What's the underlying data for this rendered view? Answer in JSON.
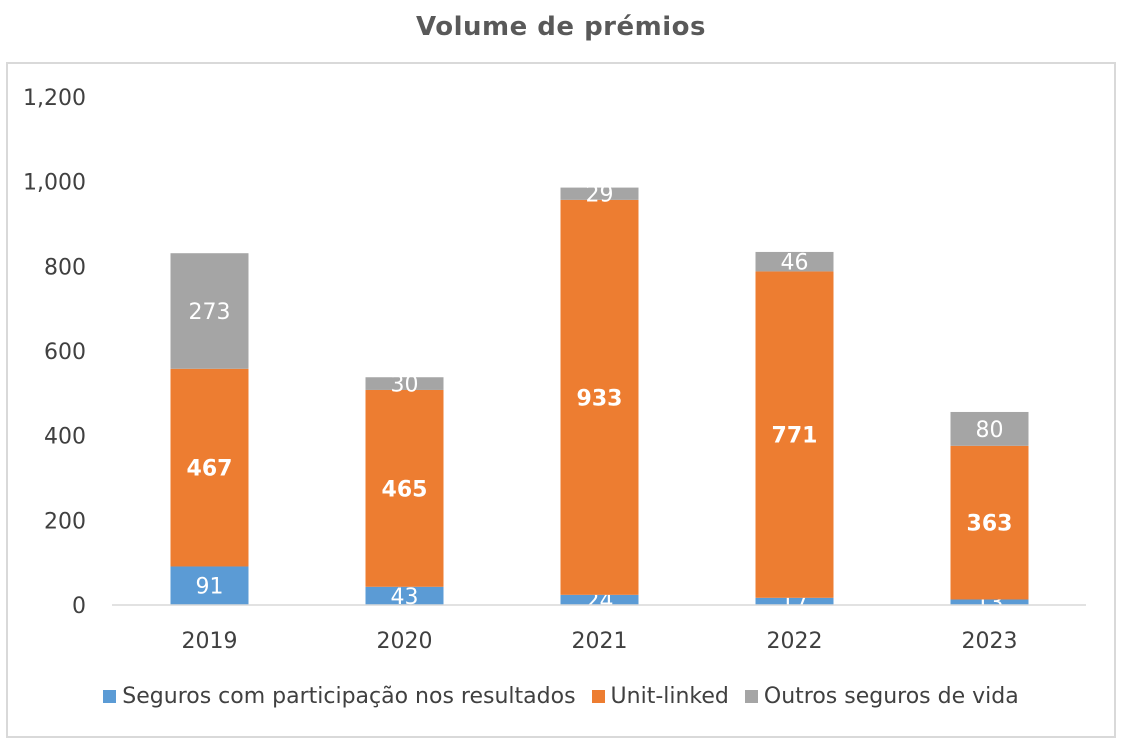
{
  "chart_data": {
    "type": "bar",
    "stacked": true,
    "title": "Volume de prémios",
    "xlabel": "",
    "ylabel": "",
    "categories": [
      "2019",
      "2020",
      "2021",
      "2022",
      "2023"
    ],
    "ylim": [
      0,
      1200
    ],
    "yticks": [
      0,
      200,
      400,
      600,
      800,
      1000,
      1200
    ],
    "ytick_labels": [
      "0",
      "200",
      "400",
      "600",
      "800",
      "1,000",
      "1,200"
    ],
    "grid": false,
    "legend_position": "bottom",
    "series": [
      {
        "name": "Seguros com participação nos resultados",
        "color": "#5b9bd5",
        "values": [
          91,
          43,
          24,
          17,
          13
        ],
        "label_bold": false
      },
      {
        "name": "Unit-linked",
        "color": "#ed7d31",
        "values": [
          467,
          465,
          933,
          771,
          363
        ],
        "label_bold": true
      },
      {
        "name": "Outros seguros de vida",
        "color": "#a5a5a5",
        "values": [
          273,
          30,
          29,
          46,
          80
        ],
        "label_bold": false
      }
    ]
  }
}
